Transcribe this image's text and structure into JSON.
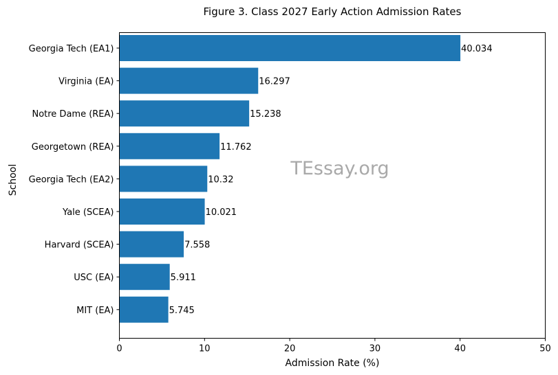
{
  "chart_data": {
    "type": "bar",
    "orientation": "horizontal",
    "title": "Figure 3. Class 2027 Early Action Admission Rates",
    "xlabel": "Admission Rate (%)",
    "ylabel": "School",
    "xlim": [
      0,
      50
    ],
    "xticks": [
      "0",
      "10",
      "20",
      "30",
      "40",
      "50"
    ],
    "categories": [
      "Georgia Tech (EA1)",
      "Virginia (EA)",
      "Notre Dame (REA)",
      "Georgetown (REA)",
      "Georgia Tech (EA2)",
      "Yale (SCEA)",
      "Harvard (SCEA)",
      "USC (EA)",
      "MIT (EA)"
    ],
    "values": [
      40.034,
      16.297,
      15.238,
      11.762,
      10.32,
      10.021,
      7.558,
      5.911,
      5.745
    ],
    "data_labels": [
      "40.034",
      "16.297",
      "15.238",
      "11.762",
      "10.32",
      "10.021",
      "7.558",
      "5.911",
      "5.745"
    ],
    "bar_color": "#1f77b4",
    "grid": false,
    "watermark": "TEssay.org"
  }
}
